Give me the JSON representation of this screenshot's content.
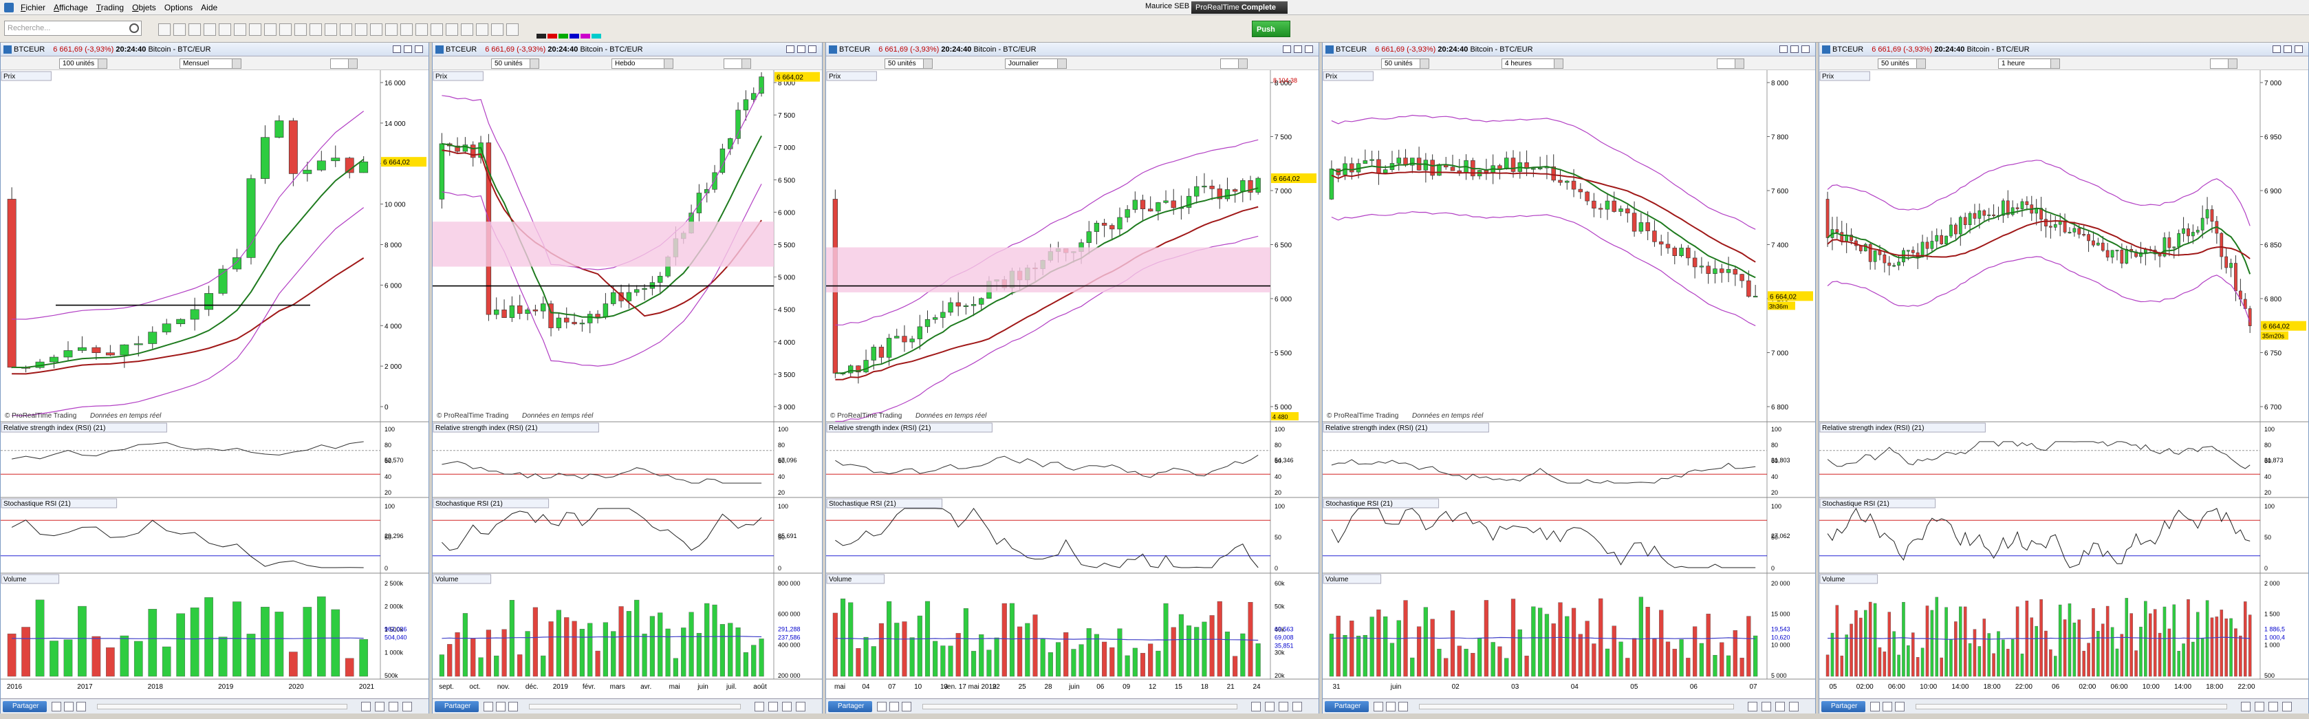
{
  "menu": {
    "file": "Fichier",
    "display": "Affichage",
    "trading": "Trading",
    "objects": "Objets",
    "options": "Options",
    "help": "Aide"
  },
  "account": "Maurice SEB",
  "product": {
    "name": "ProRealTime",
    "edition": "Complete"
  },
  "push_label": "Push",
  "search": {
    "placeholder": "Recherche..."
  },
  "share_label": "Partager",
  "colors": {
    "up": "#2ecc40",
    "down": "#e0433d",
    "bollinger": "#b23fc4",
    "ma_short": "#1e7a1e",
    "ma_long": "#a01818",
    "zone": "#f6c9e3",
    "rsi": "#333333",
    "stoch_fill_up": "#b84c4c",
    "stoch_fill_down": "#3f8c3f",
    "vol_avg": "#4040c8",
    "price_tag": "#ffde00"
  },
  "panes": [
    {
      "symbol": "BTCEUR",
      "change": "6 661,69 (-3,93%)",
      "time": "20:24:40",
      "name": "Bitcoin - BTC/EUR",
      "units": "100 unités",
      "period": "Mensuel",
      "price_label": "Prix",
      "watermark": "© ProRealTime Trading",
      "watermark_note": "Données en temps réel",
      "rsi_label": "Relative strength index (RSI) (21)",
      "rsi_value": "52,570",
      "stoch_label": "Stochastique RSI (21)",
      "stoch_value": "29,296",
      "vol_label": "Volume",
      "vol_values": [
        "962,036",
        "504,040"
      ],
      "current_price": "6 664,02",
      "yaxis": [
        "16 000",
        "14 000",
        "12 000",
        "10 000",
        "8 000",
        "6 000",
        "4 000",
        "2 000",
        "0"
      ],
      "rsi_axis": [
        "100",
        "80",
        "60",
        "40",
        "20"
      ],
      "stoch_axis": [
        "100",
        "50",
        "0"
      ],
      "vol_axis": [
        "2 500k",
        "2 000k",
        "1 500k",
        "1 000k",
        "500k"
      ],
      "xaxis": [
        "2016",
        "2017",
        "2018",
        "2019",
        "2020",
        "2021"
      ]
    },
    {
      "symbol": "BTCEUR",
      "change": "6 661,69 (-3,93%)",
      "time": "20:24:40",
      "name": "Bitcoin - BTC/EUR",
      "units": "50 unités",
      "period": "Hebdo",
      "price_label": "Prix",
      "watermark": "© ProRealTime Trading",
      "watermark_note": "Données en temps réel",
      "rsi_label": "Relative strength index (RSI) (21)",
      "rsi_value": "67,096",
      "stoch_label": "Stochastique RSI (21)",
      "stoch_value": "85,691",
      "vol_label": "Volume",
      "vol_values": [
        "291,288",
        "237,586"
      ],
      "current_price": "6 664,02",
      "yaxis": [
        "8 000",
        "7 500",
        "7 000",
        "6 500",
        "6 000",
        "5 500",
        "5 000",
        "4 500",
        "4 000",
        "3 500",
        "3 000"
      ],
      "rsi_axis": [
        "100",
        "80",
        "60",
        "40",
        "20"
      ],
      "stoch_axis": [
        "100",
        "50",
        "0"
      ],
      "vol_axis": [
        "800 000",
        "600 000",
        "400 000",
        "200 000"
      ],
      "xaxis": [
        "sept.",
        "oct.",
        "nov.",
        "déc.",
        "2019",
        "févr.",
        "mars",
        "avr.",
        "mai",
        "juin",
        "juil.",
        "août"
      ]
    },
    {
      "symbol": "BTCEUR",
      "change": "6 661,69 (-3,93%)",
      "time": "20:24:40",
      "name": "Bitcoin - BTC/EUR",
      "units": "50 unités",
      "period": "Journalier",
      "price_label": "Prix",
      "watermark": "© ProRealTime Trading",
      "watermark_note": "Données en temps réel",
      "rsi_label": "Relative strength index (RSI) (21)",
      "rsi_value": "54,346",
      "stoch_label": "Stochastique RSI (21)",
      "stoch_value": "",
      "vol_label": "Volume",
      "vol_values": [
        "69,563",
        "69,008",
        "35,851"
      ],
      "current_price": "6 664,02",
      "top_tag": "8 104,38",
      "bottom_tag": "4 480",
      "yaxis": [
        "8 000",
        "7 500",
        "7 000",
        "6 500",
        "6 000",
        "5 500",
        "5 000"
      ],
      "rsi_axis": [
        "100",
        "80",
        "60",
        "40",
        "20"
      ],
      "stoch_axis": [
        "100",
        "50",
        "0"
      ],
      "vol_axis": [
        "60k",
        "50k",
        "40k",
        "30k",
        "20k"
      ],
      "xaxis": [
        "mai",
        "04",
        "07",
        "10",
        "13",
        "ven. 17 mai 2019",
        "22",
        "25",
        "28",
        "juin",
        "06",
        "09",
        "12",
        "15",
        "18",
        "21",
        "24"
      ]
    },
    {
      "symbol": "BTCEUR",
      "change": "6 661,69 (-3,93%)",
      "time": "20:24:40",
      "name": "Bitcoin - BTC/EUR",
      "units": "50 unités",
      "period": "4 heures",
      "price_label": "Prix",
      "watermark": "© ProRealTime Trading",
      "watermark_note": "Données en temps réel",
      "rsi_label": "Relative strength index (RSI) (21)",
      "rsi_value": "31,803",
      "stoch_label": "Stochastique RSI (21)",
      "stoch_value": "27,062",
      "vol_label": "Volume",
      "vol_values": [
        "19,543",
        "10,620"
      ],
      "current_price": "6 664,02",
      "countdown": "3h36m",
      "yaxis": [
        "8 000",
        "7 800",
        "7 600",
        "7 400",
        "7 200",
        "7 000",
        "6 800"
      ],
      "rsi_axis": [
        "100",
        "80",
        "60",
        "40",
        "20"
      ],
      "stoch_axis": [
        "100",
        "50",
        "0"
      ],
      "vol_axis": [
        "20 000",
        "15 000",
        "10 000",
        "5 000"
      ],
      "xaxis": [
        "31",
        "juin",
        "02",
        "03",
        "04",
        "05",
        "06",
        "07"
      ]
    },
    {
      "symbol": "BTCEUR",
      "change": "6 661,69 (-3,93%)",
      "time": "20:24:40",
      "name": "Bitcoin - BTC/EUR",
      "units": "50 unités",
      "period": "1 heure",
      "price_label": "Prix",
      "watermark": "",
      "watermark_note": "",
      "rsi_label": "Relative strength index (RSI) (21)",
      "rsi_value": "31,873",
      "stoch_label": "Stochastique RSI (21)",
      "stoch_value": "",
      "vol_label": "Volume",
      "vol_values": [
        "1 886,5",
        "1 000,4"
      ],
      "current_price": "6 664,02",
      "countdown": "35m20s",
      "yaxis": [
        "7 000",
        "6 950",
        "6 900",
        "6 850",
        "6 800",
        "6 750",
        "6 700"
      ],
      "rsi_axis": [
        "100",
        "80",
        "60",
        "40",
        "20"
      ],
      "stoch_axis": [
        "100",
        "50",
        "0"
      ],
      "vol_axis": [
        "2 000",
        "1 500",
        "1 000",
        "500"
      ],
      "xaxis": [
        "05",
        "02:00",
        "06:00",
        "10:00",
        "14:00",
        "18:00",
        "22:00",
        "06",
        "02:00",
        "06:00",
        "10:00",
        "14:00",
        "18:00",
        "22:00"
      ]
    }
  ]
}
